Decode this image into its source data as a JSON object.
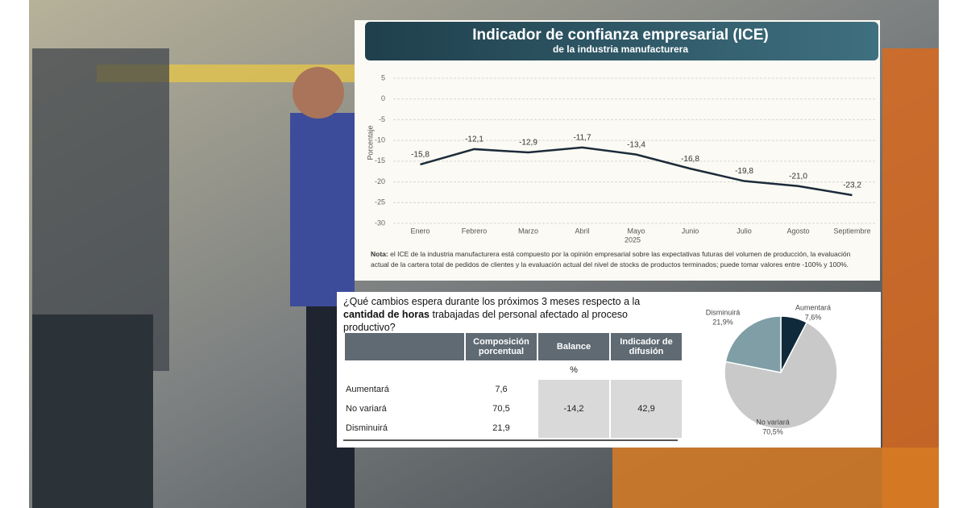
{
  "chart_data": [
    {
      "type": "line",
      "title": "Indicador de confianza empresarial (ICE)",
      "subtitle": "de la industria manufacturera",
      "y_label": "Porcentaje",
      "x_label": "2025",
      "categories": [
        "Enero",
        "Febrero",
        "Marzo",
        "Abril",
        "Mayo",
        "Junio",
        "Julio",
        "Agosto",
        "Septiembre"
      ],
      "values": [
        -15.8,
        -12.1,
        -12.9,
        -11.7,
        -13.4,
        -16.8,
        -19.8,
        -21.0,
        -23.2
      ],
      "value_labels": [
        "-15,8",
        "-12,1",
        "-12,9",
        "-11,7",
        "-13,4",
        "-16,8",
        "-19,8",
        "-21,0",
        "-23,2"
      ],
      "color": "#1c2b3a",
      "ylim": [
        -30,
        5
      ],
      "yticks": [
        5,
        0,
        -5,
        -10,
        -15,
        -20,
        -25,
        -30
      ],
      "grid": true,
      "note_label": "Nota:",
      "note": "el ICE de la industria manufacturera está compuesto por la opinión empresarial sobre las expectativas futuras del volumen de producción, la evaluación actual de la cartera total de pedidos de clientes y la evaluación actual del nivel de stocks de productos terminados; puede tomar valores entre -100% y 100%."
    },
    {
      "type": "pie",
      "categories": [
        "Aumentará",
        "No variará",
        "Disminuirá"
      ],
      "values": [
        7.6,
        70.5,
        21.9
      ],
      "value_labels": [
        "7,6%",
        "70,5%",
        "21,9%"
      ],
      "colors": [
        "#0f2b3b",
        "#c9c9c9",
        "#7f9ea6"
      ]
    }
  ],
  "question": {
    "before": "¿Qué cambios espera durante los próximos 3 meses respecto a la",
    "bold": "cantidad de horas",
    "after": "trabajadas del personal afectado al proceso productivo?"
  },
  "table": {
    "header": [
      "Composición porcentual",
      "Balance",
      "Indicador de difusión"
    ],
    "unit": "%",
    "rows": [
      [
        "Aumentará",
        "7,6"
      ],
      [
        "No variará",
        "70,5"
      ],
      [
        "Disminuirá",
        "21,9"
      ]
    ],
    "merged": [
      "-14,2",
      "42,9"
    ]
  }
}
